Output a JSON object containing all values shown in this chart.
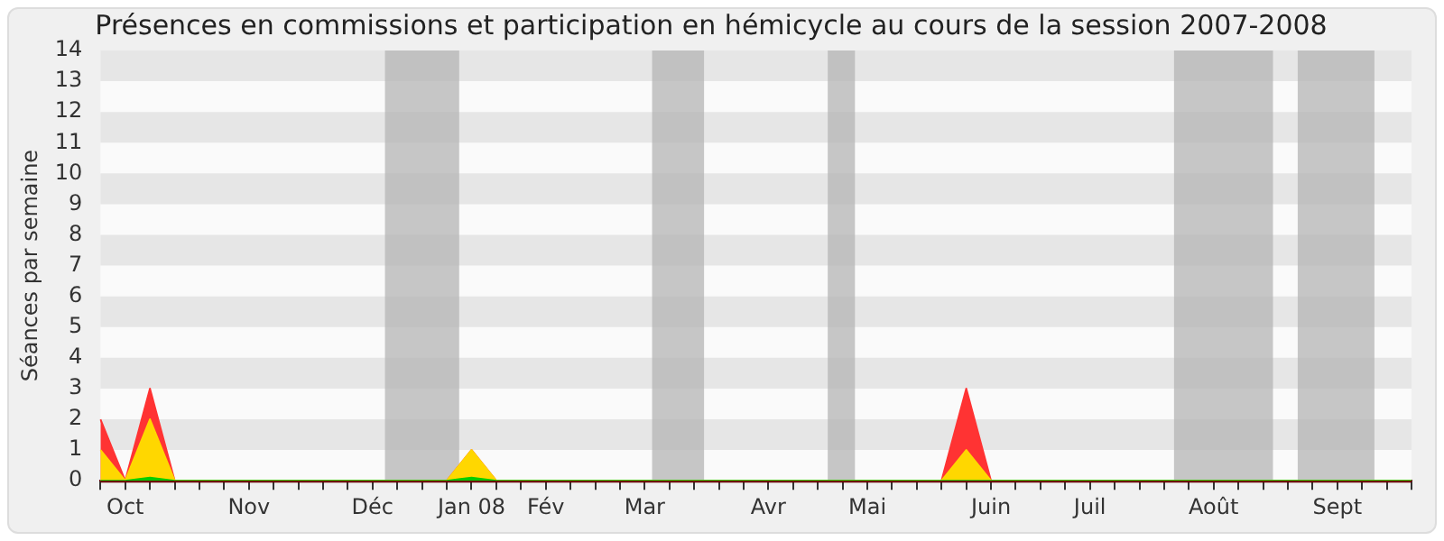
{
  "chart_data": {
    "type": "area",
    "title": "Présences en commissions et participation en hémicycle au cours de la session 2007-2008",
    "ylabel": "Séances par semaine",
    "categories": [
      null,
      "Oct",
      null,
      null,
      null,
      null,
      "Nov",
      null,
      null,
      null,
      null,
      "Déc",
      null,
      null,
      null,
      "Jan 08",
      null,
      null,
      "Fév",
      null,
      null,
      null,
      "Mar",
      null,
      null,
      null,
      null,
      "Avr",
      null,
      null,
      null,
      "Mai",
      null,
      null,
      null,
      null,
      "Juin",
      null,
      null,
      null,
      "Juil",
      null,
      null,
      null,
      null,
      "Août",
      null,
      null,
      null,
      null,
      "Sept",
      null,
      null,
      null
    ],
    "series": [
      {
        "color": "#ff3333",
        "values": [
          2,
          0,
          3,
          0,
          0,
          0,
          0,
          0,
          0,
          0,
          0,
          0,
          0,
          0,
          0,
          1,
          0,
          0,
          0,
          0,
          0,
          0,
          0,
          0,
          0,
          0,
          0,
          0,
          0,
          0,
          0,
          0,
          0,
          0,
          0,
          3,
          0,
          0,
          0,
          0,
          0,
          0,
          0,
          0,
          0,
          0,
          0,
          0,
          0,
          0,
          0,
          0,
          0,
          0
        ]
      },
      {
        "color": "#ffd700",
        "values": [
          1,
          0,
          2,
          0,
          0,
          0,
          0,
          0,
          0,
          0,
          0,
          0,
          0,
          0,
          0,
          1,
          0,
          0,
          0,
          0,
          0,
          0,
          0,
          0,
          0,
          0,
          0,
          0,
          0,
          0,
          0,
          0,
          0,
          0,
          0,
          1,
          0,
          0,
          0,
          0,
          0,
          0,
          0,
          0,
          0,
          0,
          0,
          0,
          0,
          0,
          0,
          0,
          0,
          0
        ]
      },
      {
        "color": "#00cc00",
        "values": [
          0,
          0,
          0.1,
          0,
          0,
          0,
          0,
          0,
          0,
          0,
          0,
          0,
          0,
          0,
          0,
          0.1,
          0,
          0,
          0,
          0,
          0,
          0,
          0,
          0,
          0,
          0,
          0,
          0,
          0,
          0,
          0,
          0,
          0,
          0,
          0,
          0,
          0,
          0,
          0,
          0,
          0,
          0,
          0,
          0,
          0,
          0,
          0,
          0,
          0,
          0,
          0,
          0,
          0,
          0
        ]
      }
    ],
    "ylim": [
      0,
      14
    ],
    "yticks": [
      0,
      1,
      2,
      3,
      4,
      5,
      6,
      7,
      8,
      9,
      10,
      11,
      12,
      13,
      14
    ],
    "grid": false
  }
}
